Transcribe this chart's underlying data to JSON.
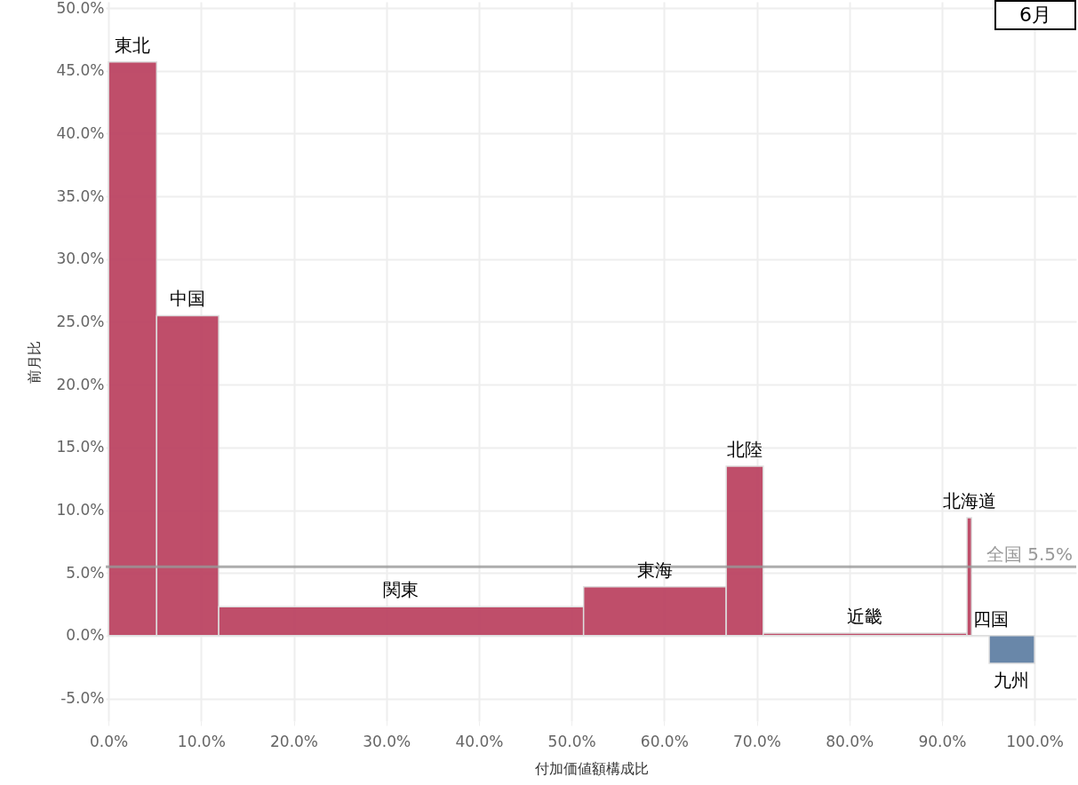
{
  "chart_data": {
    "type": "histogram",
    "xlabel": "付加価値額構成比",
    "ylabel": "前月比",
    "bins": [
      0,
      5.2,
      11.9,
      51.3,
      66.7,
      70.7,
      92.7,
      93.2,
      95.1,
      100
    ],
    "values": [
      45.7,
      25.5,
      2.3,
      3.9,
      13.5,
      0.2,
      9.4,
      0.0,
      -2.2
    ],
    "colors": [
      "#bc4563",
      "#bc4563",
      "#bc4563",
      "#bc4563",
      "#bc4563",
      "#bc4563",
      "#bc4563",
      "#dddddd",
      "#6281a5"
    ],
    "xlim": [
      -0.3,
      104.5
    ],
    "xticks": [
      {
        "value": 0,
        "label": "0.0%"
      },
      {
        "value": 10,
        "label": "10.0%"
      },
      {
        "value": 20,
        "label": "20.0%"
      },
      {
        "value": 30,
        "label": "30.0%"
      },
      {
        "value": 40,
        "label": "40.0%"
      },
      {
        "value": 50,
        "label": "50.0%"
      },
      {
        "value": 60,
        "label": "60.0%"
      },
      {
        "value": 70,
        "label": "70.0%"
      },
      {
        "value": 80,
        "label": "80.0%"
      },
      {
        "value": 90,
        "label": "90.0%"
      },
      {
        "value": 100,
        "label": "100.0%"
      }
    ],
    "ylim": [
      -6.8,
      50.5
    ],
    "yticks": [
      {
        "value": -5,
        "label": "-5.0%"
      },
      {
        "value": 0,
        "label": "0.0%"
      },
      {
        "value": 5,
        "label": "5.0%"
      },
      {
        "value": 10,
        "label": "10.0%"
      },
      {
        "value": 15,
        "label": "15.0%"
      },
      {
        "value": 20,
        "label": "20.0%"
      },
      {
        "value": 25,
        "label": "25.0%"
      },
      {
        "value": 30,
        "label": "30.0%"
      },
      {
        "value": 35,
        "label": "35.0%"
      },
      {
        "value": 40,
        "label": "40.0%"
      },
      {
        "value": 45,
        "label": "45.0%"
      },
      {
        "value": 50,
        "label": "50.0%"
      }
    ],
    "grid": true,
    "ref_lines": [
      {
        "axis": "y",
        "value": 5.5,
        "label": "全国  5.5%",
        "color": "#999999"
      }
    ],
    "annotations": [
      {
        "text": "東北",
        "x": 2.6,
        "y": 45.7
      },
      {
        "text": "中国",
        "x": 8.5,
        "y": 25.5
      },
      {
        "text": "関東",
        "x": 31.6,
        "y": 2.3
      },
      {
        "text": "東海",
        "x": 59,
        "y": 3.9
      },
      {
        "text": "北陸",
        "x": 68.7,
        "y": 13.5
      },
      {
        "text": "近畿",
        "x": 81.7,
        "y": 0.2
      },
      {
        "text": "北海道",
        "x": 92.95,
        "y": 9.4
      },
      {
        "text": "四国",
        "x": 95.3,
        "y": 0.0
      },
      {
        "text": "九州",
        "x": 97.5,
        "y": -2.2
      },
      "6月"
    ]
  }
}
